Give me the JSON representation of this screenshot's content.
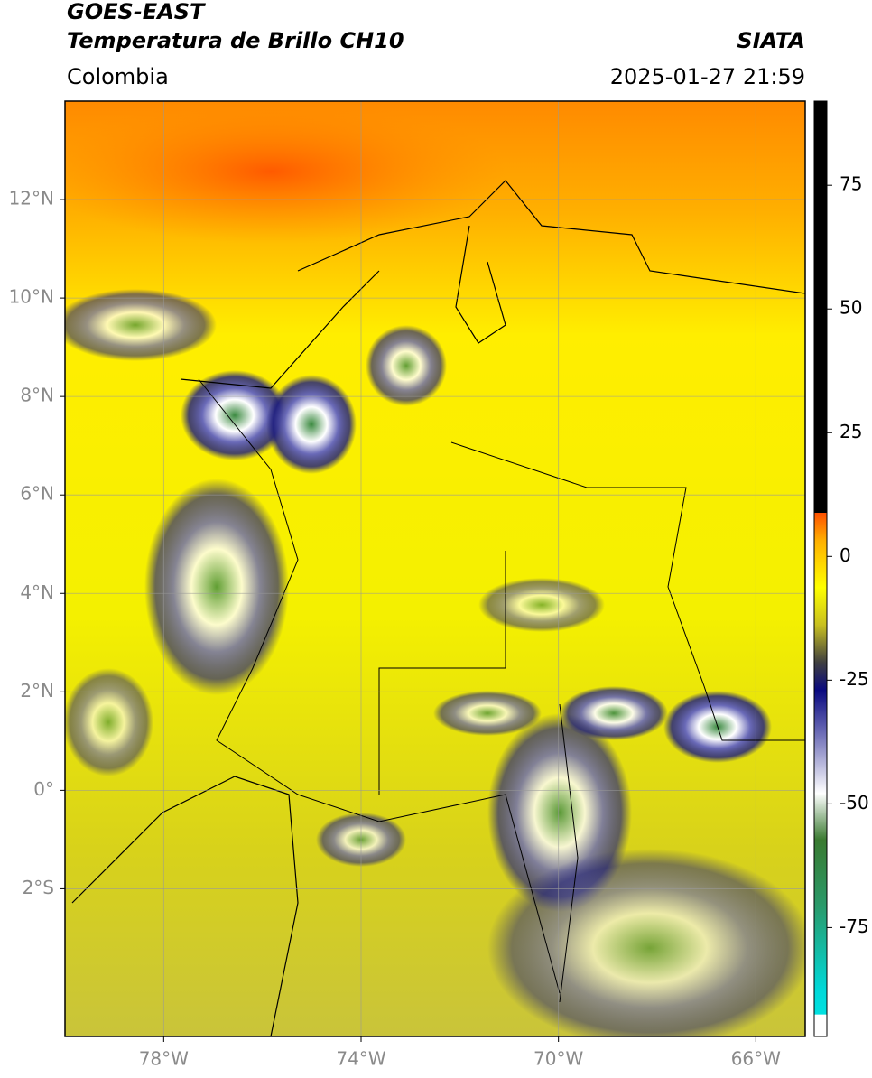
{
  "header": {
    "title": "GOES-EAST",
    "subtitle": "Temperatura de Brillo CH10",
    "source": "SIATA",
    "region": "Colombia",
    "datetime": "2025-01-27 21:59"
  },
  "map": {
    "xlim": [
      -80,
      -65
    ],
    "ylim": [
      -5,
      14
    ],
    "grid": true,
    "xticks": [
      {
        "value": -78,
        "label": "78°W"
      },
      {
        "value": -74,
        "label": "74°W"
      },
      {
        "value": -70,
        "label": "70°W"
      },
      {
        "value": -66,
        "label": "66°W"
      }
    ],
    "yticks": [
      {
        "value": 12,
        "label": "12°N"
      },
      {
        "value": 10,
        "label": "10°N"
      },
      {
        "value": 8,
        "label": "8°N"
      },
      {
        "value": 6,
        "label": "6°N"
      },
      {
        "value": 4,
        "label": "4°N"
      },
      {
        "value": 2,
        "label": "2°N"
      },
      {
        "value": 0,
        "label": "0°"
      },
      {
        "value": -2,
        "label": "2°S"
      }
    ]
  },
  "colorbar": {
    "lim": [
      -97,
      92
    ],
    "ticks": [
      75,
      50,
      25,
      0,
      -25,
      -50,
      -75
    ]
  }
}
